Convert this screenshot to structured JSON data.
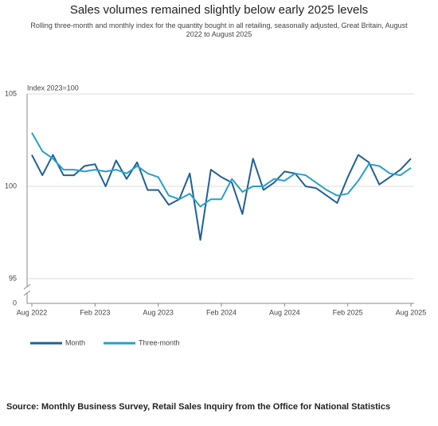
{
  "chart_data": {
    "type": "line",
    "title": "Sales volumes remained slightly below early 2025 levels",
    "subtitle": "Rolling three-month and monthly index for the quantity bought in all retailing, seasonally adjusted, Great Britain, August 2022 to August 2025",
    "y_label": "Index 2023=100",
    "source": "Source: Monthly Business Survey, Retail Sales Inquiry from the Office for National Statistics",
    "categories": [
      "Aug 2022",
      null,
      null,
      null,
      null,
      null,
      "Feb 2023",
      null,
      null,
      null,
      null,
      null,
      "Aug 2023",
      null,
      null,
      null,
      null,
      null,
      "Feb 2024",
      null,
      null,
      null,
      null,
      null,
      "Aug 2024",
      null,
      null,
      null,
      null,
      null,
      "Feb 2025",
      null,
      null,
      null,
      null,
      null,
      "Aug 2025"
    ],
    "series": [
      {
        "name": "Month",
        "color": "#206095",
        "values": [
          101.7,
          100.6,
          101.7,
          100.6,
          100.6,
          101.1,
          101.2,
          100.0,
          101.4,
          100.4,
          101.3,
          99.8,
          99.8,
          99.0,
          99.3,
          100.7,
          97.1,
          100.9,
          100.5,
          100.2,
          98.5,
          101.5,
          99.8,
          100.2,
          100.8,
          100.7,
          100.0,
          99.9,
          99.5,
          99.1,
          100.5,
          101.7,
          101.3,
          100.1,
          100.5,
          100.9,
          101.5
        ]
      },
      {
        "name": "Three-month",
        "color": "#27a0cc",
        "values": [
          102.9,
          101.9,
          101.5,
          100.9,
          100.9,
          100.8,
          100.9,
          100.8,
          100.9,
          100.7,
          101.1,
          100.7,
          100.5,
          99.5,
          99.3,
          99.6,
          98.9,
          99.3,
          99.3,
          100.4,
          99.7,
          100.0,
          100.0,
          100.4,
          100.3,
          100.7,
          100.6,
          100.2,
          99.8,
          99.5,
          99.6,
          100.3,
          101.2,
          101.1,
          100.7,
          100.6,
          101.0
        ]
      }
    ],
    "ylim": [
      95,
      105
    ],
    "yticks": [
      0,
      95,
      100,
      105
    ],
    "axis_break": true,
    "grid": true,
    "legend": "bottom-left"
  }
}
